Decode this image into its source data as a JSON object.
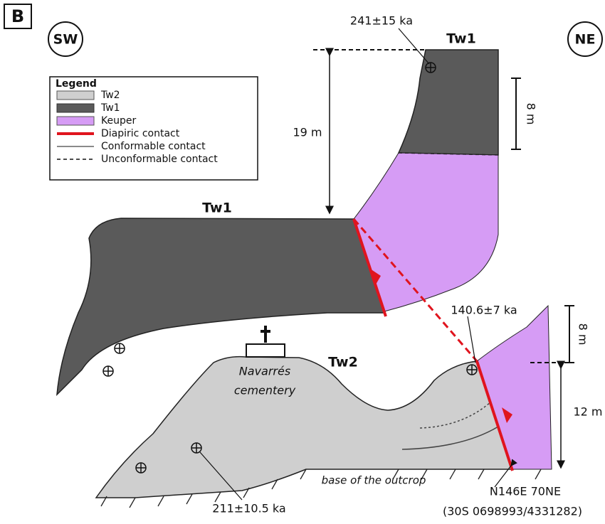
{
  "panel_label": "B",
  "orientation": {
    "left": "SW",
    "right": "NE"
  },
  "legend": {
    "title": "Legend",
    "items": [
      "Tw2",
      "Tw1",
      "Keuper",
      "Diapiric contact",
      "Conformable contact",
      "Unconformable contact"
    ]
  },
  "units": {
    "upper_left": "Tw1",
    "upper_right": "Tw1",
    "lower": "Tw2"
  },
  "dates": [
    "241±15 ka",
    "140.6±7 ka",
    "211±10.5 ka"
  ],
  "measurements": [
    "19 m",
    "8 m",
    "8 m",
    "12 m"
  ],
  "labels": {
    "cemetery": [
      "Navarrés",
      "cementery"
    ],
    "base": "base of the outcrop",
    "strike": "N146E 70NE",
    "coordinates": "(30S 0698993/4331282)"
  }
}
